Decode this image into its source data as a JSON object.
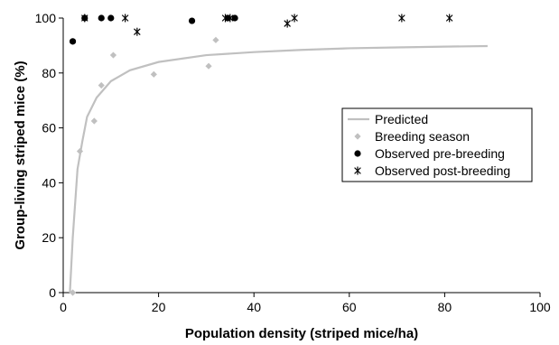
{
  "chart_data": {
    "type": "scatter",
    "title": "",
    "xlabel": "Population density (striped mice/ha)",
    "ylabel": "Group-living striped mice (%)",
    "xlim": [
      0,
      100
    ],
    "ylim": [
      0,
      100
    ],
    "xticks": [
      "0",
      "20",
      "40",
      "60",
      "80",
      "100"
    ],
    "yticks": [
      "0",
      "20",
      "40",
      "60",
      "80",
      "100"
    ],
    "grid": false,
    "legend_position": "right",
    "series": [
      {
        "name": "Predicted",
        "kind": "line",
        "color": "#c0c0c0",
        "points": [
          [
            1.4,
            0
          ],
          [
            2,
            20
          ],
          [
            3,
            45
          ],
          [
            4,
            55
          ],
          [
            5,
            64
          ],
          [
            7,
            71
          ],
          [
            10,
            77
          ],
          [
            14,
            81
          ],
          [
            20,
            84
          ],
          [
            30,
            86.5
          ],
          [
            40,
            87.6
          ],
          [
            50,
            88.4
          ],
          [
            60,
            89
          ],
          [
            70,
            89.3
          ],
          [
            80,
            89.6
          ],
          [
            89,
            89.8
          ]
        ]
      },
      {
        "name": "Breeding season",
        "kind": "diamond",
        "color": "#c0c0c0",
        "points": [
          [
            2,
            0
          ],
          [
            3.5,
            51.5
          ],
          [
            6.5,
            62.5
          ],
          [
            8,
            75.5
          ],
          [
            10.5,
            86.5
          ],
          [
            19,
            79.5
          ],
          [
            30.5,
            82.5
          ],
          [
            32,
            92
          ]
        ]
      },
      {
        "name": "Observed pre-breeding",
        "kind": "circle",
        "color": "#000000",
        "points": [
          [
            2,
            91.5
          ],
          [
            4.5,
            100
          ],
          [
            8,
            100
          ],
          [
            10,
            100
          ],
          [
            27,
            99
          ],
          [
            34.5,
            100
          ],
          [
            36,
            100
          ]
        ]
      },
      {
        "name": "Observed post-breeding",
        "kind": "asterisk",
        "color": "#000000",
        "points": [
          [
            4.5,
            100
          ],
          [
            13,
            100
          ],
          [
            15.5,
            95
          ],
          [
            34,
            100
          ],
          [
            35,
            100
          ],
          [
            47,
            98
          ],
          [
            48.5,
            100
          ],
          [
            71,
            100
          ],
          [
            81,
            100
          ]
        ]
      }
    ]
  }
}
